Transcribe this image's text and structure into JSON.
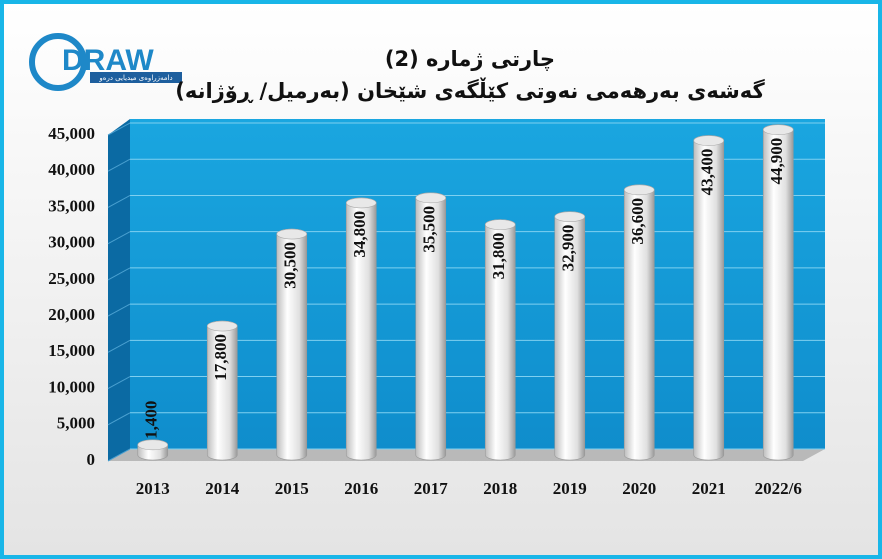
{
  "logo": {
    "name": "DRAW",
    "tagline": "دامەزراوەی میدیایی درەو"
  },
  "chart_data": {
    "type": "bar",
    "title": "چارتی ژمارە (2)",
    "subtitle": "گەشەی بەرهەمی نەوتی کێڵگەی شێخان (بەرمیل/ ڕۆژانە)",
    "categories": [
      "2013",
      "2014",
      "2015",
      "2016",
      "2017",
      "2018",
      "2019",
      "2020",
      "2021",
      "2022/6"
    ],
    "values": [
      1400,
      17800,
      30500,
      34800,
      35500,
      31800,
      32900,
      36600,
      43400,
      44900
    ],
    "value_labels": [
      "1,400",
      "17,800",
      "30,500",
      "34,800",
      "35,500",
      "31,800",
      "32,900",
      "36,600",
      "43,400",
      "44,900"
    ],
    "color": "#e8e8e8",
    "ylim": [
      0,
      45000
    ],
    "yticks": [
      0,
      {
        "value": 5000,
        "label": "5,000"
      },
      {
        "value": 10000,
        "label": "10,000"
      },
      {
        "value": 15000,
        "label": "15,000"
      },
      {
        "value": 20000,
        "label": "20,000"
      },
      {
        "value": 25000,
        "label": "25,000"
      },
      {
        "value": 30000,
        "label": "30,000"
      },
      {
        "value": 35000,
        "label": "35,000"
      },
      {
        "value": 40000,
        "label": "40,000"
      },
      {
        "value": 45000,
        "label": "45,000"
      }
    ],
    "grid": true
  }
}
